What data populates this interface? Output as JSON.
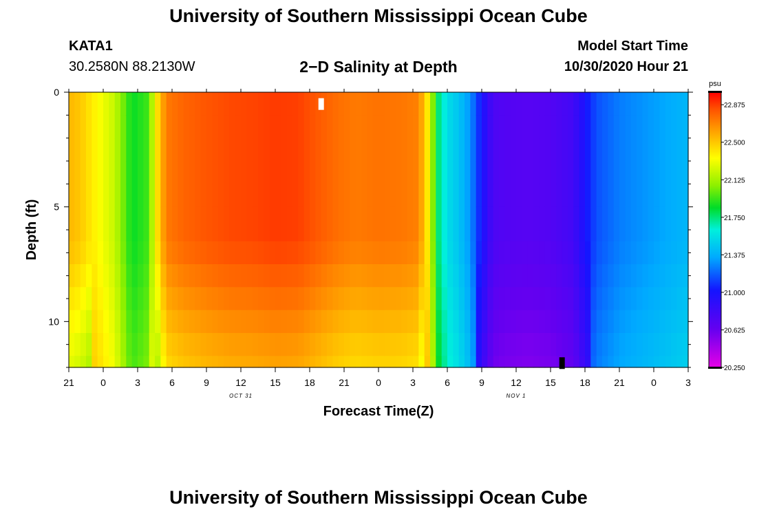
{
  "header": {
    "title": "University of Southern Mississippi Ocean Cube",
    "station_id": "KATA1",
    "coords": "30.2580N 88.2130W",
    "plot_title": "2−D Salinity at Depth",
    "start_label": "Model Start Time",
    "start_value": "10/30/2020 Hour 21"
  },
  "footer": {
    "title": "University of Southern Mississippi Ocean Cube"
  },
  "chart_data": {
    "type": "heatmap",
    "title": "2-D Salinity at Depth",
    "xlabel": "Forecast Time(Z)",
    "ylabel": "Depth (ft)",
    "x_range_hours": [
      0,
      54
    ],
    "x_tick_labels": [
      "21",
      "0",
      "3",
      "6",
      "9",
      "12",
      "15",
      "18",
      "21",
      "0",
      "3",
      "6",
      "9",
      "12",
      "15",
      "18",
      "21",
      "0",
      "3"
    ],
    "date_labels": [
      {
        "text": "OCT 31",
        "hour": 15
      },
      {
        "text": "NOV 1",
        "hour": 39
      }
    ],
    "y_range_ft": [
      0,
      12
    ],
    "y_tick_labels": [
      "0",
      "5",
      "10"
    ],
    "y_ticks_ft": [
      0,
      5,
      10
    ],
    "depth_levels_ft": [
      0,
      1,
      2,
      3,
      4,
      5,
      6,
      7,
      8,
      9,
      10,
      11,
      12
    ],
    "surface_profile_psu": [
      [
        0,
        22.55
      ],
      [
        1,
        22.5
      ],
      [
        3,
        22.3
      ],
      [
        4,
        22.2
      ],
      [
        5.5,
        21.85
      ],
      [
        7,
        21.95
      ],
      [
        7.5,
        22.35
      ],
      [
        8.5,
        22.72
      ],
      [
        10,
        22.78
      ],
      [
        12,
        22.82
      ],
      [
        14,
        22.85
      ],
      [
        16,
        22.86
      ],
      [
        18,
        22.88
      ],
      [
        20,
        22.87
      ],
      [
        22,
        22.8
      ],
      [
        23.5,
        22.75
      ],
      [
        25,
        22.72
      ],
      [
        27,
        22.74
      ],
      [
        29,
        22.73
      ],
      [
        30.5,
        22.7
      ],
      [
        31.5,
        22.3
      ],
      [
        32,
        21.8
      ],
      [
        33,
        21.55
      ],
      [
        34,
        21.45
      ],
      [
        35,
        21.3
      ],
      [
        36,
        21.0
      ],
      [
        37,
        20.75
      ],
      [
        38,
        20.72
      ],
      [
        40,
        20.7
      ],
      [
        42,
        20.72
      ],
      [
        44,
        20.8
      ],
      [
        45,
        21.0
      ],
      [
        46,
        21.15
      ],
      [
        48,
        21.25
      ],
      [
        50,
        21.3
      ],
      [
        52,
        21.35
      ],
      [
        54,
        21.4
      ]
    ],
    "colorbar": {
      "units": "psu",
      "range": [
        20.25,
        23.0
      ],
      "tick_labels": [
        "22.875",
        "22.500",
        "22.125",
        "21.750",
        "21.375",
        "21.000",
        "20.625",
        "20.250"
      ],
      "ticks": [
        22.875,
        22.5,
        22.125,
        21.75,
        21.375,
        21.0,
        20.625,
        20.25
      ]
    },
    "markers": [
      {
        "hour": 22,
        "depth_ft": 0.5,
        "color": "#ffffff"
      },
      {
        "hour": 43,
        "depth_ft": 11.8,
        "color": "#000000"
      }
    ]
  }
}
